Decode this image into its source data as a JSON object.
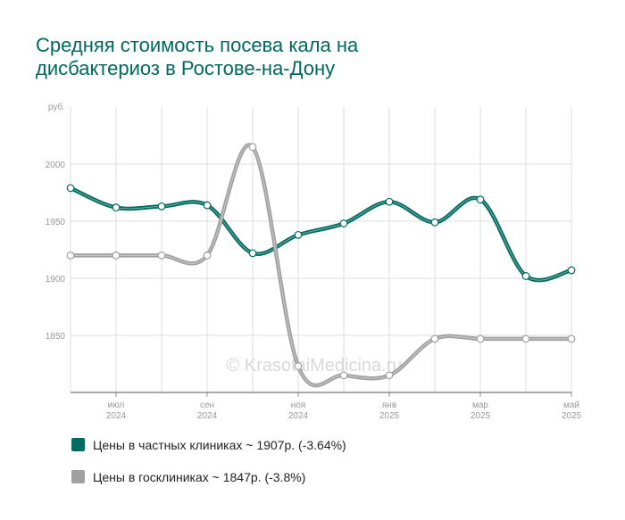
{
  "chart_data": {
    "type": "line",
    "title": [
      "Средняя стоимость посева кала на",
      "дисбактериоз в Ростове-на-Дону"
    ],
    "y_unit": "руб.",
    "watermark": "© KrasotaiMedicina.ru",
    "categories": [
      null,
      {
        "month": "июл",
        "year": "2024"
      },
      null,
      {
        "month": "сен",
        "year": "2024"
      },
      null,
      {
        "month": "ноя",
        "year": "2024"
      },
      null,
      {
        "month": "янв",
        "year": "2025"
      },
      null,
      {
        "month": "мар",
        "year": "2025"
      },
      null,
      {
        "month": "май",
        "year": "2025"
      }
    ],
    "ylim": [
      1800,
      2050
    ],
    "yticks": [
      1850,
      1900,
      1950,
      2000
    ],
    "grid": true,
    "series": [
      {
        "name": "Цены в частных клиниках ~ 1907р. (-3.64%)",
        "color": "#006b5e",
        "values": [
          1979,
          1962,
          1963,
          1964,
          1922,
          1938,
          1948,
          1967,
          1949,
          1969,
          1902,
          1907
        ]
      },
      {
        "name": "Цены в госклиниках ~ 1847р. (-3.8%)",
        "color": "#a0a0a0",
        "values": [
          1920,
          1920,
          1920,
          1920,
          2015,
          1823,
          1815,
          1815,
          1847,
          1847,
          1847,
          1847
        ]
      }
    ]
  }
}
